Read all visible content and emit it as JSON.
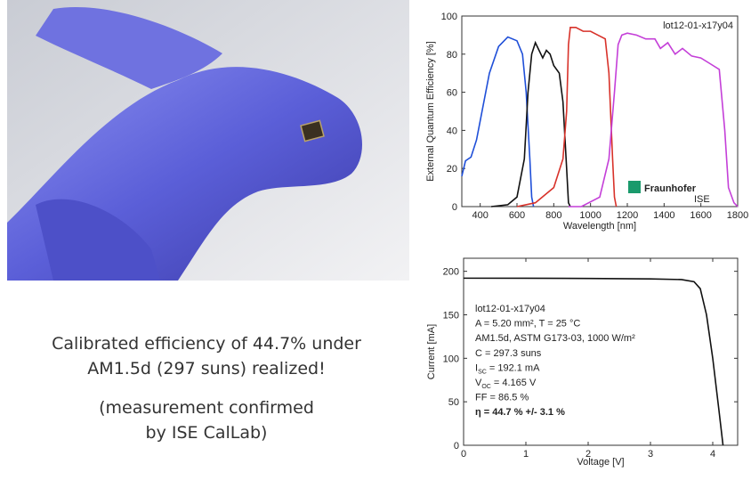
{
  "caption": [
    "Calibrated efficiency of 44.7% under",
    "AM1.5d (297 suns) realized!",
    "(measurement confirmed",
    "by ISE CalLab)"
  ],
  "chart_data": [
    {
      "type": "line",
      "x_label": "Wavelength [nm]",
      "y_label": "External Quantum Efficiency [%]",
      "annotation": "lot12-01-x17y04",
      "logo": {
        "text": "Fraunhofer",
        "subtext": "ISE"
      },
      "xlim": [
        300,
        1800
      ],
      "xticks": [
        400,
        600,
        800,
        1000,
        1200,
        1400,
        1600,
        1800
      ],
      "ylim": [
        0,
        100
      ],
      "yticks": [
        0,
        20,
        40,
        60,
        80,
        100
      ],
      "grid": false,
      "series": [
        {
          "color": "#1f4fd8",
          "x": [
            300,
            320,
            350,
            380,
            400,
            450,
            500,
            550,
            600,
            630,
            650,
            670,
            680,
            690
          ],
          "values": [
            16,
            24,
            26,
            35,
            45,
            70,
            84,
            89,
            87,
            80,
            60,
            25,
            5,
            0
          ]
        },
        {
          "color": "#111111",
          "x": [
            460,
            550,
            600,
            640,
            660,
            680,
            700,
            720,
            740,
            760,
            780,
            800,
            830,
            850,
            870,
            880,
            890
          ],
          "values": [
            0,
            1,
            5,
            25,
            60,
            80,
            86,
            82,
            78,
            82,
            80,
            74,
            70,
            55,
            20,
            2,
            0
          ]
        },
        {
          "color": "#d8322a",
          "x": [
            600,
            700,
            800,
            850,
            870,
            880,
            890,
            920,
            960,
            1000,
            1040,
            1080,
            1100,
            1120,
            1130,
            1140
          ],
          "values": [
            0,
            2,
            10,
            25,
            50,
            85,
            94,
            94,
            92,
            92,
            90,
            88,
            70,
            25,
            5,
            0
          ]
        },
        {
          "color": "#c43fd8",
          "x": [
            880,
            950,
            1050,
            1100,
            1130,
            1150,
            1170,
            1200,
            1250,
            1300,
            1350,
            1380,
            1420,
            1460,
            1500,
            1550,
            1600,
            1650,
            1700,
            1730,
            1750,
            1780,
            1800
          ],
          "values": [
            0,
            0,
            5,
            25,
            60,
            85,
            90,
            91,
            90,
            88,
            88,
            83,
            86,
            80,
            83,
            79,
            78,
            75,
            72,
            40,
            10,
            2,
            0
          ]
        }
      ]
    },
    {
      "type": "line",
      "x_label": "Voltage [V]",
      "y_label": "Current [mA]",
      "xlim": [
        0,
        4.4
      ],
      "xticks": [
        0,
        1,
        2,
        3,
        4
      ],
      "ylim": [
        0,
        215
      ],
      "yticks": [
        0,
        50,
        100,
        150,
        200
      ],
      "grid": false,
      "annotations": [
        {
          "text": "lot12-01-x17y04"
        },
        {
          "text": "A = 5.20 mm², T = 25 °C"
        },
        {
          "text": "AM1.5d, ASTM G173-03, 1000 W/m²"
        },
        {
          "text": "C = 297.3 suns"
        },
        {
          "symbol": "I",
          "sub": "SC",
          "rest": " = 192.1 mA"
        },
        {
          "symbol": "V",
          "sub": "OC",
          "rest": " = 4.165 V"
        },
        {
          "text": "FF = 86.5 %"
        },
        {
          "text": "η = 44.7 % +/- 3.1 %",
          "bold": true
        }
      ],
      "series": [
        {
          "color": "#111111",
          "x": [
            0,
            1,
            2,
            3,
            3.5,
            3.7,
            3.8,
            3.9,
            4.0,
            4.1,
            4.165
          ],
          "values": [
            192.1,
            192,
            191.8,
            191.3,
            190.5,
            188,
            180,
            150,
            100,
            40,
            0
          ]
        }
      ]
    }
  ]
}
